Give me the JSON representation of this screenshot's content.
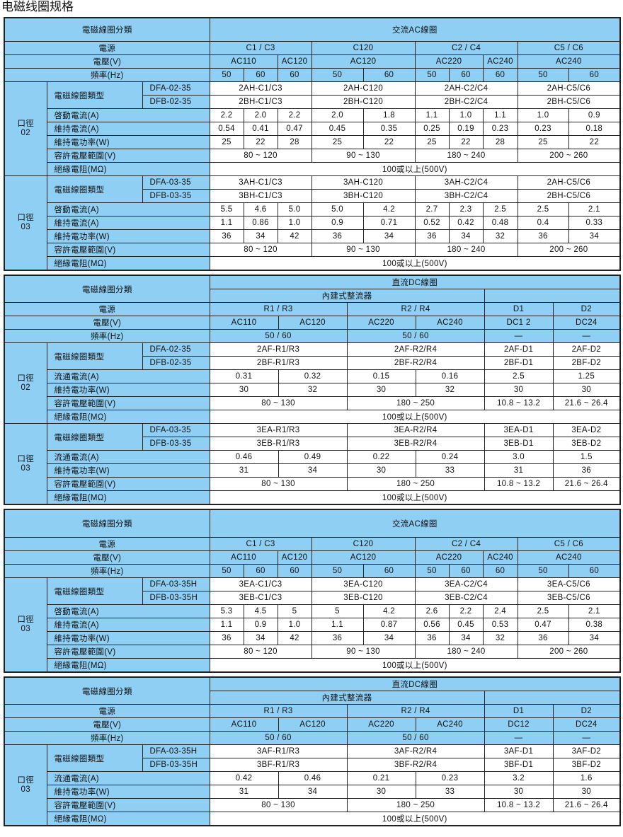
{
  "page_title": "电磁线圈规格",
  "colors": {
    "header_blue": "#8fcff4",
    "cell_white": "#ffffff",
    "border": "#222222"
  },
  "tables": [
    {
      "kind": "ac",
      "rows": [
        [
          "電磁線圈分類",
          "交流AC線圈"
        ],
        [
          "電源",
          "C1 / C3",
          "C120",
          "C2 / C4",
          "C5 / C6"
        ],
        [
          "電壓(V)",
          "AC110",
          "AC120",
          "AC120",
          "AC220",
          "AC240",
          "AC240"
        ],
        [
          "頻率(Hz)",
          "50",
          "60",
          "60",
          "50",
          "60",
          "50",
          "60",
          "60",
          "50",
          "60"
        ],
        [
          "口徑\n02",
          "電磁線圈類型",
          "DFA-02-35",
          "2AH-C1/C3",
          "2AH-C120",
          "2AH-C2/C4",
          "2AH-C5/C6"
        ],
        [
          "DFB-02-35",
          "2BH-C1/C3",
          "2BH-C120",
          "2BH-C2/C4",
          "2BH-C5/C6"
        ],
        [
          "啓動電流(A)",
          "2.2",
          "2.0",
          "2.2",
          "2.0",
          "1.8",
          "1.1",
          "1.0",
          "1.1",
          "1.0",
          "0.9"
        ],
        [
          "維持電流(A)",
          "0.54",
          "0.41",
          "0.47",
          "0.45",
          "0.35",
          "0.25",
          "0.19",
          "0.23",
          "0.23",
          "0.18"
        ],
        [
          "維持電功率(W)",
          "25",
          "22",
          "28",
          "25",
          "22",
          "25",
          "22",
          "28",
          "25",
          "22"
        ],
        [
          "容許電壓範圍(V)",
          "80 ~ 120",
          "90 ~ 130",
          "180 ~ 240",
          "200 ~ 260"
        ],
        [
          "絕緣電阻(MΩ)",
          "100或以上(500V)"
        ],
        [
          "口徑\n03",
          "電磁線圈類型",
          "DFA-03-35",
          "3AH-C1/C3",
          "3AH-C120",
          "3AH-C2/C4",
          "2AH-C5/C6"
        ],
        [
          "DFB-03-35",
          "3BH-C1/C3",
          "3BH-C120",
          "3BH-C2/C4",
          "2BH-C5/C6"
        ],
        [
          "啓動電流(A)",
          "5.5",
          "4.6",
          "5.0",
          "5.0",
          "4.2",
          "2.7",
          "2.3",
          "2.5",
          "2.5",
          "2.1"
        ],
        [
          "維持電流(A)",
          "1.1",
          "0.86",
          "1.0",
          "0.9",
          "0.71",
          "0.52",
          "0.42",
          "0.48",
          "0.4",
          "0.33"
        ],
        [
          "維持電功率(W)",
          "36",
          "34",
          "42",
          "36",
          "34",
          "36",
          "34",
          "32",
          "36",
          "34"
        ],
        [
          "容許電壓範圍(V)",
          "80 ~ 120",
          "90 ~ 130",
          "180 ~ 240",
          "200 ~ 260"
        ],
        [
          "絕緣電阻(MΩ)",
          "100或以上(500V)"
        ]
      ]
    },
    {
      "kind": "dc",
      "rows": [
        [
          "電磁線圈分類",
          "直流DC線圈"
        ],
        [
          "內建式整流器",
          ""
        ],
        [
          "電源",
          "R1 / R3",
          "R2 / R4",
          "D1",
          "D2"
        ],
        [
          "電壓(V)",
          "AC110",
          "AC120",
          "AC220",
          "AC240",
          "DC1 2",
          "DC24"
        ],
        [
          "頻率(Hz)",
          "50 / 60",
          "50 / 60",
          "—",
          "—"
        ],
        [
          "口徑\n02",
          "電磁線圈類型",
          "DFA-02-35",
          "2AF-R1/R3",
          "2AF-R2/R4",
          "2AF-D1",
          "2AF-D2"
        ],
        [
          "DFB-02-35",
          "2BF-R1/R3",
          "2BF-R2/R4",
          "2BF-D1",
          "2BF-D2"
        ],
        [
          "流通電流(A)",
          "0.31",
          "0.32",
          "0.15",
          "0.16",
          "2.5",
          "1.25"
        ],
        [
          "維持電功率(W)",
          "30",
          "32",
          "30",
          "32",
          "30",
          "30"
        ],
        [
          "容許電壓範圍(V)",
          "80 ~ 130",
          "180 ~ 250",
          "10.8 ~ 13.2",
          "21.6 ~ 26.4"
        ],
        [
          "絕緣電阻(MΩ)",
          "100或以上(500V)"
        ],
        [
          "口徑\n03",
          "電磁線圈類型",
          "DFA-03-35",
          "3EA-R1/R3",
          "3EA-R2/R4",
          "3EA-D1",
          "3EA-D2"
        ],
        [
          "DFB-03-35",
          "3EB-R1/R3",
          "3EB-R2/R4",
          "3EB-D1",
          "3EB-D2"
        ],
        [
          "流通電流(A)",
          "0.46",
          "0.49",
          "0.22",
          "0.24",
          "3.0",
          "1.5"
        ],
        [
          "維持電功率(W)",
          "31",
          "34",
          "30",
          "33",
          "31",
          "36"
        ],
        [
          "容許電壓範圍(V)",
          "80 ~ 130",
          "180 ~ 250",
          "10.8 ~ 13.2",
          "21.6 ~ 26.4"
        ],
        [
          "絕緣電阻(MΩ)",
          "100或以上(500V)"
        ]
      ]
    },
    {
      "kind": "ac",
      "rows": [
        [
          "電磁線圈分類",
          "交流AC線圈"
        ],
        [
          "電源",
          "C1 / C3",
          "C120",
          "C2 / C4",
          "C5 / C6"
        ],
        [
          "電壓(V)",
          "AC110",
          "AC120",
          "AC120",
          "AC220",
          "AC240",
          "AC240"
        ],
        [
          "頻率(Hz)",
          "50",
          "60",
          "60",
          "50",
          "60",
          "50",
          "60",
          "60",
          "50",
          "60"
        ],
        [
          "口徑\n03",
          "電磁線圈類型",
          "DFA-03-35H",
          "3EA-C1/C3",
          "3EA-C120",
          "3EA-C2/C4",
          "3EA-C5/C6"
        ],
        [
          "DFB-03-35H",
          "3EB-C1/C3",
          "3EB-C120",
          "3EB-C2/C4",
          "3EB-C5/C6"
        ],
        [
          "啓動電流(A)",
          "5.3",
          "4.5",
          "5",
          "5",
          "4.2",
          "2.6",
          "2.2",
          "2.4",
          "2.5",
          "2.1"
        ],
        [
          "維持電流(A)",
          "1.1",
          "0.9",
          "1.0",
          "1.1",
          "0.87",
          "0.56",
          "0.45",
          "0.53",
          "0.47",
          "0.38"
        ],
        [
          "維持電功率(W)",
          "36",
          "34",
          "42",
          "36",
          "34",
          "36",
          "34",
          "32",
          "36",
          "34"
        ],
        [
          "容許電壓範圍(V)",
          "80 ~ 120",
          "90 ~ 130",
          "180 ~ 240",
          "200 ~ 260"
        ],
        [
          "絕緣電阻(MΩ)",
          "100或以上(500V)"
        ]
      ]
    },
    {
      "kind": "dc",
      "rows": [
        [
          "電磁線圈分類",
          "直流DC線圈"
        ],
        [
          "內建式整流器",
          ""
        ],
        [
          "電源",
          "R1 / R3",
          "R2 / R4",
          "D1",
          "D2"
        ],
        [
          "電壓(V)",
          "AC110",
          "AC120",
          "AC220",
          "AC240",
          "DC12",
          "DC24"
        ],
        [
          "頻率(Hz)",
          "50 / 60",
          "50 / 60",
          "—",
          "—"
        ],
        [
          "口徑\n03",
          "電磁線圈類型",
          "DFA-03-35H",
          "3AF-R1/R3",
          "3AF-R2/R4",
          "3AF-D1",
          "3AF-D2"
        ],
        [
          "DFB-03-35H",
          "3BF-R1/R3",
          "3BF-R2/R4",
          "3BF-D1",
          "3BF-D2"
        ],
        [
          "流通電流(A)",
          "0.42",
          "0.46",
          "0.21",
          "0.23",
          "3.2",
          "1.6"
        ],
        [
          "維持電功率(W)",
          "31",
          "34",
          "30",
          "33",
          "30",
          "30"
        ],
        [
          "容許電壓範圍(V)",
          "80 ~ 130",
          "180 ~ 250",
          "10.8 ~ 13.2",
          "21.6 ~ 26.4"
        ],
        [
          "絕緣電阻(MΩ)",
          "100或以上(500V)"
        ]
      ]
    }
  ]
}
